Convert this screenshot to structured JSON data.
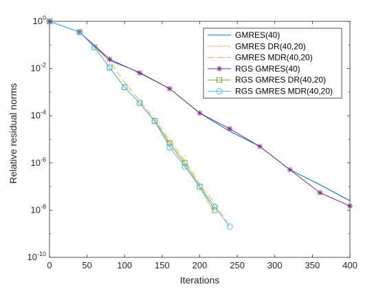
{
  "chart_data": {
    "type": "line",
    "title": "",
    "xlabel": "Iterations",
    "ylabel": "Relative residual norms",
    "xlim": [
      0,
      400
    ],
    "ylim": [
      1e-10,
      1
    ],
    "yscale": "log",
    "grid": false,
    "legend_position": "top-right",
    "x_ticks": [
      0,
      50,
      100,
      150,
      200,
      250,
      300,
      350,
      400
    ],
    "x_tick_labels": [
      "0",
      "50",
      "100",
      "150",
      "200",
      "250",
      "300",
      "350",
      "400"
    ],
    "y_ticks": [
      1,
      0.01,
      0.0001,
      1e-06,
      1e-08,
      1e-10
    ],
    "y_tick_labels": [
      {
        "base": "10",
        "exp": "0"
      },
      {
        "base": "10",
        "exp": "-2"
      },
      {
        "base": "10",
        "exp": "-4"
      },
      {
        "base": "10",
        "exp": "-6"
      },
      {
        "base": "10",
        "exp": "-8"
      },
      {
        "base": "10",
        "exp": "-10"
      }
    ],
    "series": [
      {
        "name": "GMRES(40)",
        "color": "#0072bd",
        "line_style": "solid",
        "marker": "none",
        "x": [
          0,
          40,
          80,
          120,
          160,
          200,
          240,
          280,
          320,
          360,
          400
        ],
        "y": [
          1,
          0.35,
          0.022,
          0.0068,
          0.0014,
          0.00013,
          2.2e-05,
          5e-06,
          5.2e-07,
          1.2e-07,
          2.5e-08
        ]
      },
      {
        "name": "GMRES DR(40,20)",
        "color": "#d95319",
        "line_style": "dotted",
        "marker": "none",
        "x": [
          0,
          40,
          60,
          80,
          100,
          120,
          140,
          160,
          180,
          200,
          220
        ],
        "y": [
          1,
          0.35,
          0.08,
          0.011,
          0.0016,
          0.00035,
          5.5e-05,
          6e-06,
          8e-07,
          9e-08,
          7e-09
        ]
      },
      {
        "name": "GMRES MDR(40,20)",
        "color": "#edb120",
        "line_style": "dashed",
        "marker": "none",
        "x": [
          0,
          40,
          60,
          80,
          100,
          120,
          140,
          160,
          180,
          200,
          220,
          240
        ],
        "y": [
          1,
          0.35,
          0.08,
          0.022,
          0.0025,
          0.00045,
          7e-05,
          9e-06,
          1.3e-06,
          1.2e-07,
          2e-08,
          2e-09
        ]
      },
      {
        "name": "RGS GMRES(40)",
        "color": "#7e2f8e",
        "line_style": "solid",
        "marker": "star",
        "x": [
          0,
          40,
          80,
          120,
          160,
          200,
          240,
          280,
          320,
          360,
          400
        ],
        "y": [
          1,
          0.35,
          0.025,
          0.0065,
          0.0014,
          0.00013,
          2.8e-05,
          5e-06,
          5.2e-07,
          5.5e-08,
          1.5e-08
        ]
      },
      {
        "name": "RGS GMRES DR(40,20)",
        "color": "#77ac30",
        "line_style": "solid",
        "marker": "square",
        "x": [
          0,
          40,
          60,
          80,
          100,
          120,
          140,
          160,
          180,
          200,
          220
        ],
        "y": [
          1,
          0.35,
          0.08,
          0.011,
          0.0016,
          0.00035,
          6e-05,
          7e-06,
          1e-06,
          1e-07,
          1e-08
        ]
      },
      {
        "name": "RGS GMRES MDR(40,20)",
        "color": "#4dbeee",
        "line_style": "solid",
        "marker": "circle",
        "x": [
          0,
          40,
          60,
          80,
          100,
          120,
          140,
          160,
          180,
          200,
          220,
          240
        ],
        "y": [
          1,
          0.35,
          0.08,
          0.011,
          0.0016,
          0.00035,
          6e-05,
          4.5e-06,
          7e-07,
          1e-07,
          1.4e-08,
          2e-09
        ]
      }
    ]
  }
}
